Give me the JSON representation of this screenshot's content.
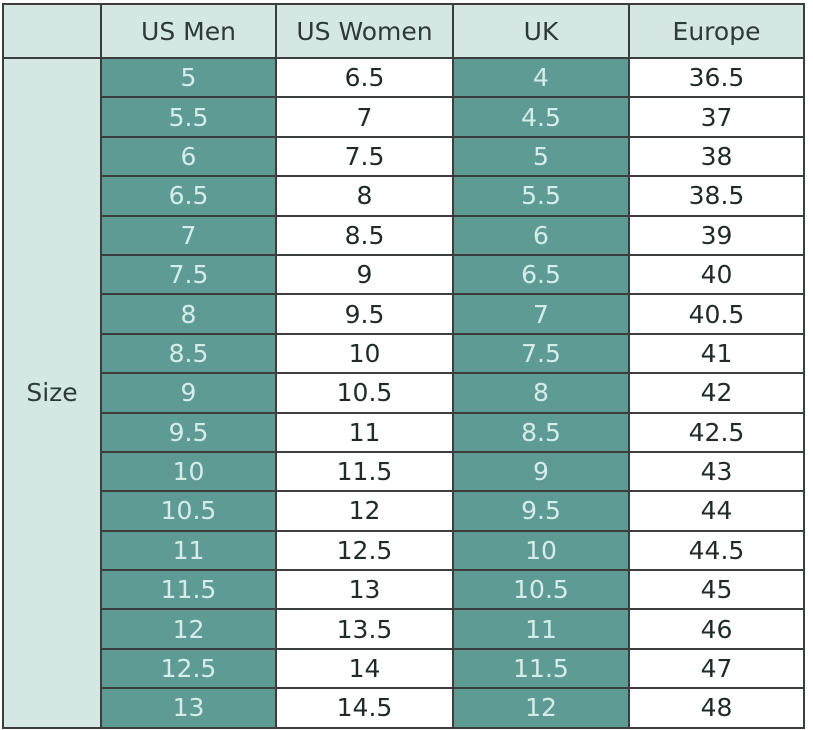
{
  "table": {
    "row_label": "Size",
    "header": [
      "US Men",
      "US Women",
      "UK",
      "Europe"
    ],
    "rows": [
      [
        "5",
        "6.5",
        "4",
        "36.5"
      ],
      [
        "5.5",
        "7",
        "4.5",
        "37"
      ],
      [
        "6",
        "7.5",
        "5",
        "38"
      ],
      [
        "6.5",
        "8",
        "5.5",
        "38.5"
      ],
      [
        "7",
        "8.5",
        "6",
        "39"
      ],
      [
        "7.5",
        "9",
        "6.5",
        "40"
      ],
      [
        "8",
        "9.5",
        "7",
        "40.5"
      ],
      [
        "8.5",
        "10",
        "7.5",
        "41"
      ],
      [
        "9",
        "10.5",
        "8",
        "42"
      ],
      [
        "9.5",
        "11",
        "8.5",
        "42.5"
      ],
      [
        "10",
        "11.5",
        "9",
        "43"
      ],
      [
        "10.5",
        "12",
        "9.5",
        "44"
      ],
      [
        "11",
        "12.5",
        "10",
        "44.5"
      ],
      [
        "11.5",
        "13",
        "10.5",
        "45"
      ],
      [
        "12",
        "13.5",
        "11",
        "46"
      ],
      [
        "12.5",
        "14",
        "11.5",
        "47"
      ],
      [
        "13",
        "14.5",
        "12",
        "48"
      ]
    ]
  }
}
